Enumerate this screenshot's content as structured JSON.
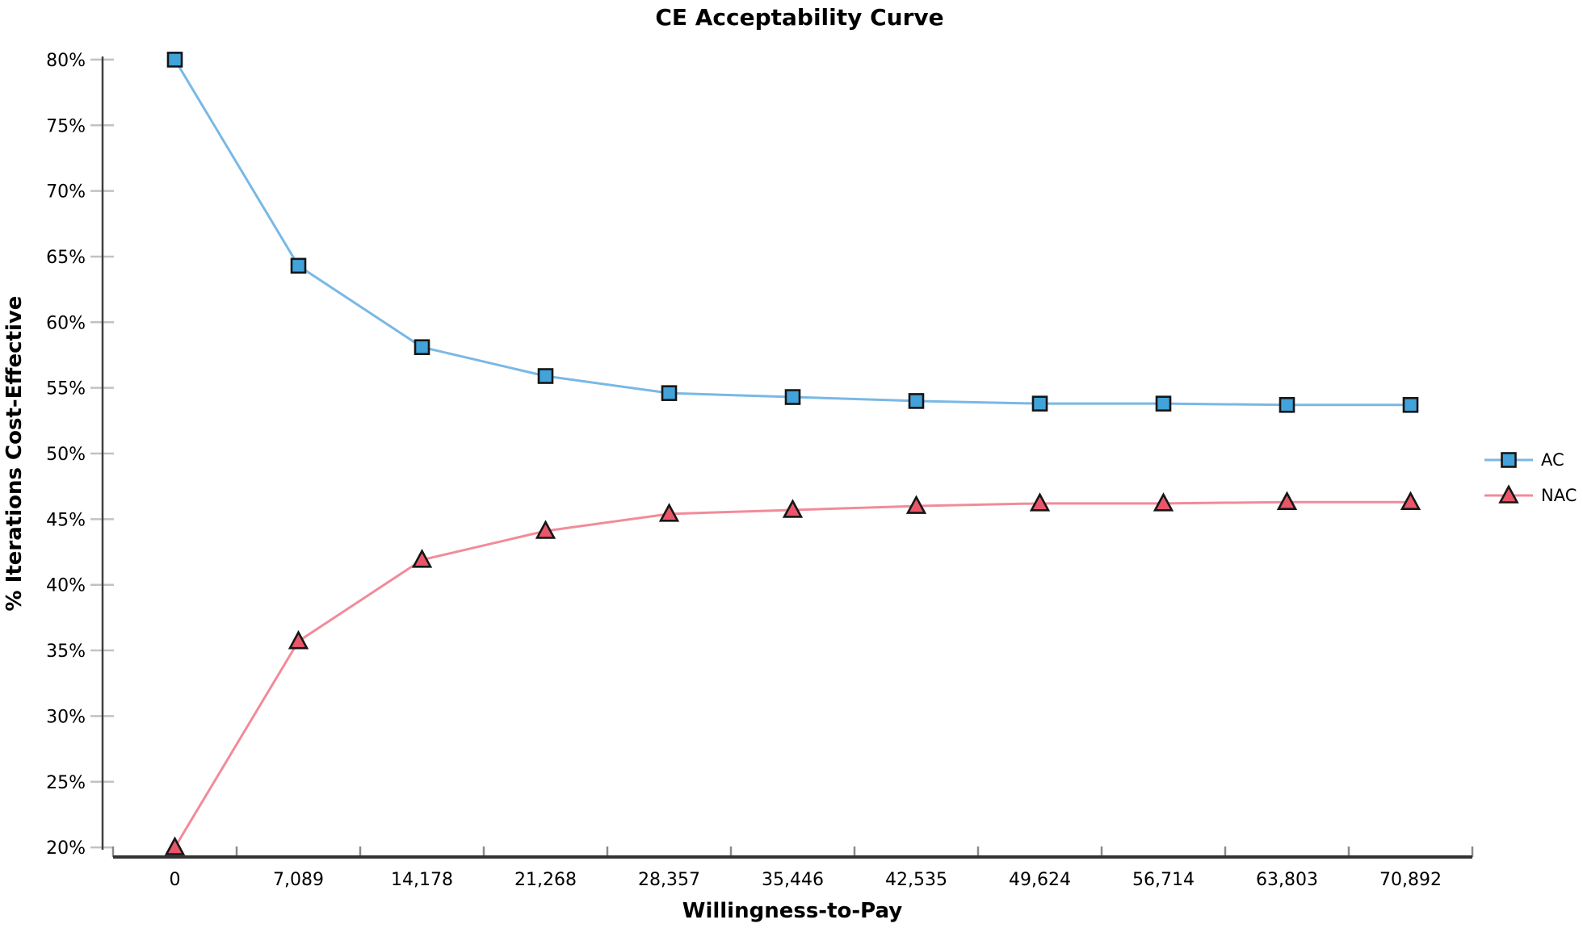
{
  "chart_data": {
    "type": "line",
    "title": "CE Acceptability Curve",
    "xlabel": "Willingness-to-Pay",
    "ylabel": "% Iterations Cost-Effective",
    "categories": [
      "0",
      "7,089",
      "14,178",
      "21,268",
      "28,357",
      "35,446",
      "42,535",
      "49,624",
      "56,714",
      "63,803",
      "70,892"
    ],
    "x_values": [
      0,
      7089,
      14178,
      21268,
      28357,
      35446,
      42535,
      49624,
      56714,
      63803,
      70892
    ],
    "series": [
      {
        "name": "AC",
        "marker": "square",
        "marker_color": "#42a3da",
        "line_color": "#79b8e6",
        "values": [
          80.0,
          64.3,
          58.1,
          55.9,
          54.6,
          54.3,
          54.0,
          53.8,
          53.8,
          53.7,
          53.7
        ]
      },
      {
        "name": "NAC",
        "marker": "triangle",
        "marker_color": "#ea5669",
        "line_color": "#f28b99",
        "values": [
          20.0,
          35.7,
          41.9,
          44.1,
          45.4,
          45.7,
          46.0,
          46.2,
          46.2,
          46.3,
          46.3
        ]
      }
    ],
    "ylim": [
      20,
      80
    ],
    "y_ticks": [
      {
        "value": 80,
        "label": "80%"
      },
      {
        "value": 75,
        "label": "75%"
      },
      {
        "value": 70,
        "label": "70%"
      },
      {
        "value": 65,
        "label": "65%"
      },
      {
        "value": 60,
        "label": "60%"
      },
      {
        "value": 55,
        "label": "55%"
      },
      {
        "value": 50,
        "label": "50%"
      },
      {
        "value": 45,
        "label": "45%"
      },
      {
        "value": 40,
        "label": "40%"
      },
      {
        "value": 35,
        "label": "35%"
      },
      {
        "value": 30,
        "label": "30%"
      },
      {
        "value": 25,
        "label": "25%"
      },
      {
        "value": 20,
        "label": "20%"
      }
    ],
    "legend_position": "right",
    "grid": false
  }
}
